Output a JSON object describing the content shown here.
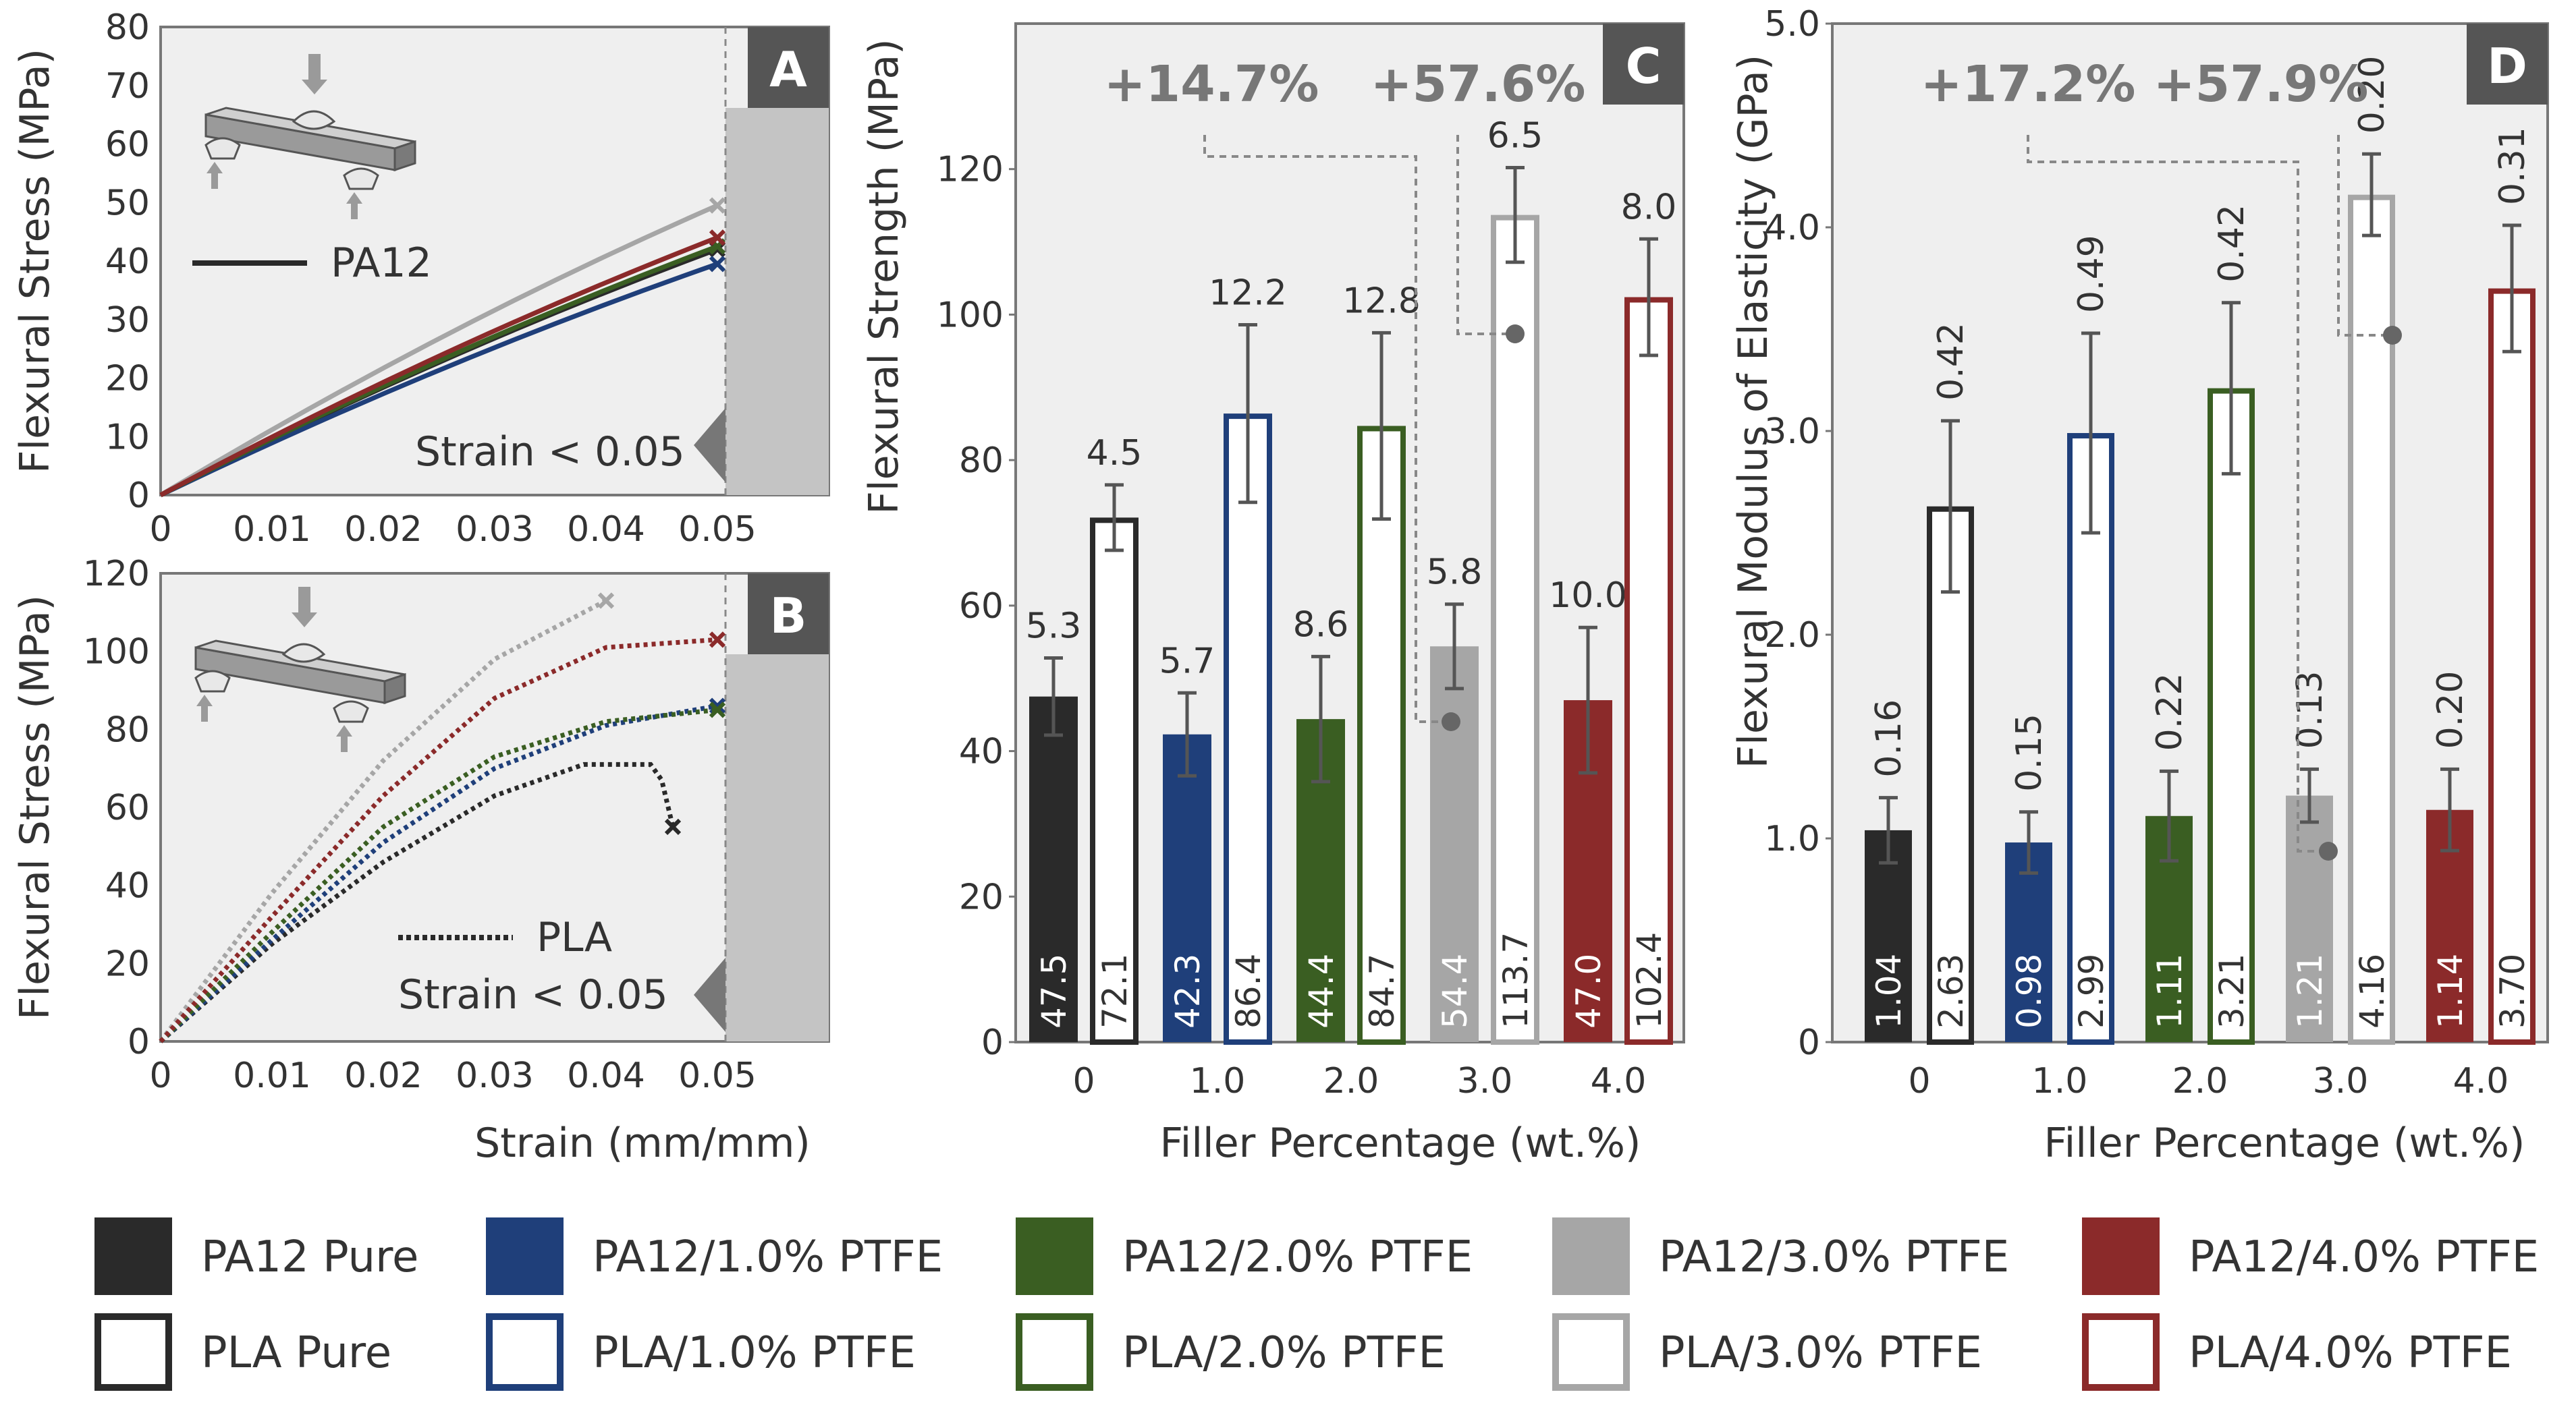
{
  "colors": {
    "pa12_pure": "#2a2a2a",
    "ptfe_1": "#1f3f7a",
    "ptfe_2": "#3a5e22",
    "ptfe_3": "#a6a6a6",
    "ptfe_4": "#8b2a2a",
    "panel_bg": "#efefef",
    "shade": "#c4c4c4",
    "label_box": "#555555"
  },
  "chart_data": [
    {
      "id": "A",
      "type": "line",
      "panel_label": "A",
      "xlabel": "",
      "ylabel": "Flexural Stress (MPa)",
      "xlim": [
        0,
        0.06
      ],
      "ylim": [
        0,
        80
      ],
      "xticks": [
        "0",
        "0.01",
        "0.02",
        "0.03",
        "0.04",
        "0.05"
      ],
      "yticks": [
        "0",
        "10",
        "20",
        "30",
        "40",
        "50",
        "60",
        "70",
        "80"
      ],
      "legend": "PA12",
      "annotation": "Strain < 0.05",
      "series": [
        {
          "name": "PA12 Pure",
          "color_key": "pa12_pure",
          "end_x": 0.05,
          "end_y": 42
        },
        {
          "name": "PA12/1.0% PTFE",
          "color_key": "ptfe_1",
          "end_x": 0.05,
          "end_y": 39.5
        },
        {
          "name": "PA12/2.0% PTFE",
          "color_key": "ptfe_2",
          "end_x": 0.05,
          "end_y": 42.5
        },
        {
          "name": "PA12/3.0% PTFE",
          "color_key": "ptfe_3",
          "end_x": 0.05,
          "end_y": 49.5
        },
        {
          "name": "PA12/4.0% PTFE",
          "color_key": "ptfe_4",
          "end_x": 0.05,
          "end_y": 44
        }
      ]
    },
    {
      "id": "B",
      "type": "line",
      "panel_label": "B",
      "xlabel": "Strain (mm/mm)",
      "ylabel": "Flexural Stress (MPa)",
      "xlim": [
        0,
        0.06
      ],
      "ylim": [
        0,
        120
      ],
      "xticks": [
        "0",
        "0.01",
        "0.02",
        "0.03",
        "0.04",
        "0.05"
      ],
      "yticks": [
        "0",
        "20",
        "40",
        "60",
        "80",
        "100",
        "120"
      ],
      "legend": "PLA",
      "annotation": "Strain < 0.05",
      "series": [
        {
          "name": "PLA Pure",
          "color_key": "pa12_pure",
          "points": [
            [
              0,
              0
            ],
            [
              0.01,
              25
            ],
            [
              0.02,
              46
            ],
            [
              0.03,
              63
            ],
            [
              0.038,
              71
            ],
            [
              0.044,
              71
            ],
            [
              0.045,
              67
            ],
            [
              0.046,
              55
            ]
          ]
        },
        {
          "name": "PLA/1.0% PTFE",
          "color_key": "ptfe_1",
          "points": [
            [
              0,
              0
            ],
            [
              0.01,
              26
            ],
            [
              0.02,
              51
            ],
            [
              0.03,
              70
            ],
            [
              0.04,
              81
            ],
            [
              0.05,
              86
            ]
          ]
        },
        {
          "name": "PLA/2.0% PTFE",
          "color_key": "ptfe_2",
          "points": [
            [
              0,
              0
            ],
            [
              0.01,
              28
            ],
            [
              0.02,
              55
            ],
            [
              0.03,
              73
            ],
            [
              0.04,
              82
            ],
            [
              0.05,
              85
            ]
          ]
        },
        {
          "name": "PLA/3.0% PTFE",
          "color_key": "ptfe_3",
          "points": [
            [
              0,
              0
            ],
            [
              0.01,
              38
            ],
            [
              0.02,
              72
            ],
            [
              0.03,
              98
            ],
            [
              0.04,
              113
            ]
          ]
        },
        {
          "name": "PLA/4.0% PTFE",
          "color_key": "ptfe_4",
          "points": [
            [
              0,
              0
            ],
            [
              0.01,
              32
            ],
            [
              0.02,
              63
            ],
            [
              0.03,
              88
            ],
            [
              0.04,
              101
            ],
            [
              0.05,
              103
            ]
          ]
        }
      ]
    },
    {
      "id": "C",
      "type": "bar",
      "panel_label": "C",
      "xlabel": "Filler Percentage (wt.%)",
      "ylabel": "Flexural Strength (MPa)",
      "ylim": [
        0,
        140
      ],
      "yticks": [
        "0",
        "20",
        "40",
        "60",
        "80",
        "100",
        "120"
      ],
      "categories": [
        "0",
        "1.0",
        "2.0",
        "3.0",
        "4.0"
      ],
      "increase_labels": [
        "+14.7%",
        "+57.6%"
      ],
      "series": [
        {
          "name": "PA12",
          "values": [
            47.5,
            42.3,
            44.4,
            54.4,
            47.0
          ],
          "value_labels": [
            "47.5",
            "42.3",
            "44.4",
            "54.4",
            "47.0"
          ],
          "err": [
            5.3,
            5.7,
            8.6,
            5.8,
            10.0
          ],
          "err_labels": [
            "5.3",
            "5.7",
            "8.6",
            "5.8",
            "10.0"
          ]
        },
        {
          "name": "PLA",
          "values": [
            72.1,
            86.4,
            84.7,
            113.7,
            102.4
          ],
          "value_labels": [
            "72.1",
            "86.4",
            "84.7",
            "113.7",
            "102.4"
          ],
          "err": [
            4.5,
            12.2,
            12.8,
            6.5,
            8.0
          ],
          "err_labels": [
            "4.5",
            "12.2",
            "12.8",
            "6.5",
            "8.0"
          ]
        }
      ]
    },
    {
      "id": "D",
      "type": "bar",
      "panel_label": "D",
      "xlabel": "Filler Percentage (wt.%)",
      "ylabel": "Flexural Modulus of Elasticity (GPa)",
      "ylim": [
        0,
        5.0
      ],
      "yticks": [
        "0",
        "1.0",
        "2.0",
        "3.0",
        "4.0",
        "5.0"
      ],
      "categories": [
        "0",
        "1.0",
        "2.0",
        "3.0",
        "4.0"
      ],
      "increase_labels": [
        "+17.2%",
        "+57.9%"
      ],
      "series": [
        {
          "name": "PA12",
          "values": [
            1.04,
            0.98,
            1.11,
            1.21,
            1.14
          ],
          "value_labels": [
            "1.04",
            "0.98",
            "1.11",
            "1.21",
            "1.14"
          ],
          "err": [
            0.16,
            0.15,
            0.22,
            0.13,
            0.2
          ],
          "err_labels": [
            "0.16",
            "0.15",
            "0.22",
            "0.13",
            "0.20"
          ]
        },
        {
          "name": "PLA",
          "values": [
            2.63,
            2.99,
            3.21,
            4.16,
            3.7
          ],
          "value_labels": [
            "2.63",
            "2.99",
            "3.21",
            "4.16",
            "3.70"
          ],
          "err": [
            0.42,
            0.49,
            0.42,
            0.2,
            0.31
          ],
          "err_labels": [
            "0.42",
            "0.49",
            "0.42",
            "0.20",
            "0.31"
          ]
        }
      ]
    }
  ],
  "legend": [
    {
      "label": "PA12 Pure",
      "style": "filled",
      "color_key": "pa12_pure"
    },
    {
      "label": "PA12/1.0% PTFE",
      "style": "filled",
      "color_key": "ptfe_1"
    },
    {
      "label": "PA12/2.0% PTFE",
      "style": "filled",
      "color_key": "ptfe_2"
    },
    {
      "label": "PA12/3.0% PTFE",
      "style": "filled",
      "color_key": "ptfe_3"
    },
    {
      "label": "PA12/4.0% PTFE",
      "style": "filled",
      "color_key": "ptfe_4"
    },
    {
      "label": "PLA Pure",
      "style": "outline",
      "color_key": "pa12_pure"
    },
    {
      "label": "PLA/1.0% PTFE",
      "style": "outline",
      "color_key": "ptfe_1"
    },
    {
      "label": "PLA/2.0% PTFE",
      "style": "outline",
      "color_key": "ptfe_2"
    },
    {
      "label": "PLA/3.0% PTFE",
      "style": "outline",
      "color_key": "ptfe_3"
    },
    {
      "label": "PLA/4.0% PTFE",
      "style": "outline",
      "color_key": "ptfe_4"
    }
  ]
}
